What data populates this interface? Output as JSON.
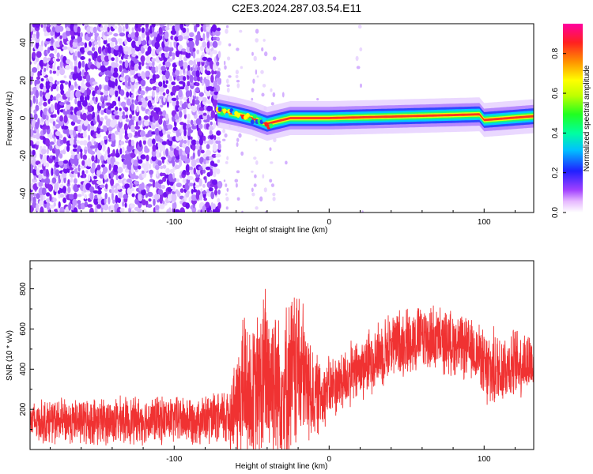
{
  "title": "C2E3.2024.287.03.54.E11",
  "chart_data": [
    {
      "type": "heatmap",
      "xlabel": "Height of straight line (km)",
      "ylabel": "Frequency (Hz)",
      "xlim": [
        -193,
        132
      ],
      "ylim": [
        -50,
        50
      ],
      "xticks": [
        -100,
        0,
        100
      ],
      "yticks": [
        -40,
        -20,
        0,
        20,
        40
      ],
      "colorbar": {
        "label": "Normalized spectral amplitude",
        "range": [
          0,
          0.95
        ],
        "ticks": [
          "0.0",
          "0.2",
          "0.4",
          "0.6",
          "0.8"
        ]
      },
      "regions": [
        {
          "x_range": [
            -193,
            -72
          ],
          "description_value": "broadband noise",
          "amplitude": 0.15
        },
        {
          "x_range": [
            -72,
            132
          ],
          "description_value": "narrow band near 0 Hz",
          "amplitude": 0.9
        }
      ],
      "ridge": {
        "x": [
          -72,
          -60,
          -50,
          -40,
          -35,
          -25,
          0,
          50,
          97,
          100,
          132
        ],
        "y": [
          4,
          2,
          0,
          -3,
          -2,
          0,
          0,
          1,
          2,
          -1,
          1
        ]
      }
    },
    {
      "type": "line",
      "xlabel": "Height of straight line (km)",
      "ylabel": "SNR (10 * v/v)",
      "xlim": [
        -193,
        132
      ],
      "ylim": [
        0,
        940
      ],
      "xticks": [
        -100,
        0,
        100
      ],
      "yticks": [
        200,
        400,
        600,
        800
      ],
      "color": "#f03232",
      "envelope": {
        "x": [
          -193,
          -150,
          -100,
          -70,
          -60,
          -55,
          -50,
          -40,
          -30,
          -20,
          -10,
          0,
          20,
          40,
          60,
          80,
          98,
          100,
          120,
          132
        ],
        "mean": [
          140,
          140,
          150,
          150,
          200,
          330,
          250,
          380,
          300,
          420,
          260,
          300,
          400,
          520,
          560,
          530,
          470,
          380,
          430,
          440
        ],
        "amp": [
          100,
          110,
          110,
          120,
          230,
          400,
          300,
          450,
          380,
          400,
          200,
          150,
          150,
          160,
          160,
          150,
          140,
          200,
          160,
          160
        ]
      }
    }
  ]
}
